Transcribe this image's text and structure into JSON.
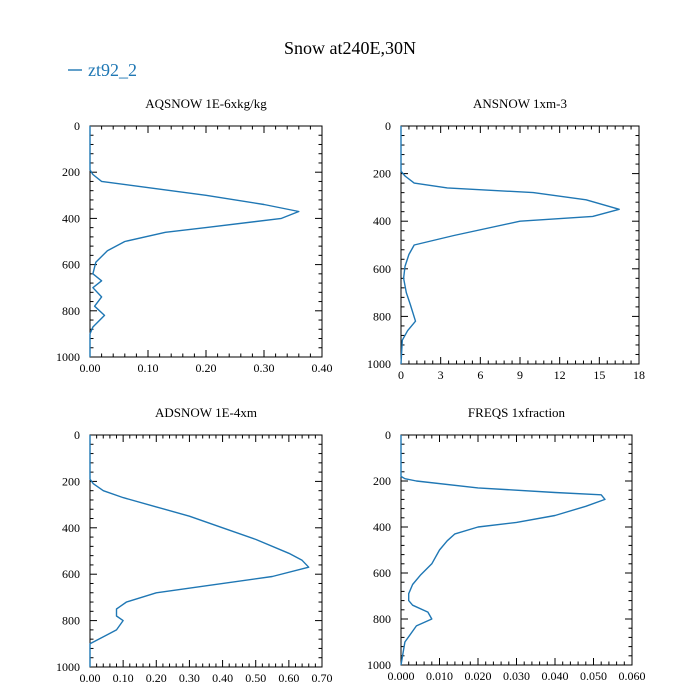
{
  "title": "Snow at240E,30N",
  "legend": {
    "label": "zt92_2",
    "color": "#1f77b4"
  },
  "colors": {
    "series": "#1f77b4",
    "axis": "#000000"
  },
  "chart_data": [
    {
      "type": "line",
      "title": "AQSNOW  1E-6xkg/kg",
      "xlabel": "",
      "ylabel": "",
      "xlim": [
        0,
        0.4
      ],
      "ylim": [
        1000,
        0
      ],
      "x_ticks": [
        0,
        0.1,
        0.2,
        0.3,
        0.4
      ],
      "x_tick_labels": [
        "0.00",
        "0.10",
        "0.20",
        "0.30",
        "0.40"
      ],
      "y_ticks": [
        0,
        200,
        400,
        600,
        800,
        1000
      ],
      "y_tick_labels": [
        "0",
        "200",
        "400",
        "600",
        "800",
        "1000"
      ],
      "series": [
        {
          "name": "zt92_2",
          "x": [
            0,
            0,
            0.005,
            0.02,
            0.08,
            0.2,
            0.3,
            0.36,
            0.33,
            0.2,
            0.13,
            0.06,
            0.03,
            0.01,
            0.005,
            0.02,
            0.005,
            0.02,
            0.008,
            0.025,
            0.005,
            0,
            0
          ],
          "y": [
            0,
            190,
            210,
            240,
            260,
            300,
            340,
            370,
            400,
            440,
            460,
            500,
            540,
            590,
            640,
            670,
            700,
            740,
            780,
            820,
            870,
            900,
            1000
          ]
        }
      ]
    },
    {
      "type": "line",
      "title": "ANSNOW  1xm-3",
      "xlabel": "",
      "ylabel": "",
      "xlim": [
        0,
        18
      ],
      "ylim": [
        1000,
        0
      ],
      "x_ticks": [
        0,
        3,
        6,
        9,
        12,
        15,
        18
      ],
      "x_tick_labels": [
        "0",
        "3",
        "6",
        "9",
        "12",
        "15",
        "18"
      ],
      "y_ticks": [
        0,
        200,
        400,
        600,
        800,
        1000
      ],
      "y_tick_labels": [
        "0",
        "200",
        "400",
        "600",
        "800",
        "1000"
      ],
      "series": [
        {
          "name": "zt92_2",
          "x": [
            0,
            0,
            0.3,
            1,
            3.5,
            10,
            14,
            16.5,
            14.5,
            9,
            4,
            1,
            0.6,
            0.3,
            0.2,
            0.4,
            0.7,
            1.1,
            0.5,
            0.1,
            0
          ],
          "y": [
            0,
            190,
            210,
            240,
            260,
            280,
            310,
            350,
            380,
            400,
            460,
            500,
            540,
            590,
            640,
            700,
            750,
            820,
            860,
            900,
            1000
          ]
        }
      ]
    },
    {
      "type": "line",
      "title": "ADSNOW  1E-4xm",
      "xlabel": "",
      "ylabel": "",
      "xlim": [
        0,
        0.7
      ],
      "ylim": [
        1000,
        0
      ],
      "x_ticks": [
        0,
        0.1,
        0.2,
        0.3,
        0.4,
        0.5,
        0.6,
        0.7
      ],
      "x_tick_labels": [
        "0.00",
        "0.10",
        "0.20",
        "0.30",
        "0.40",
        "0.50",
        "0.60",
        "0.70"
      ],
      "y_ticks": [
        0,
        200,
        400,
        600,
        800,
        1000
      ],
      "y_tick_labels": [
        "0",
        "200",
        "400",
        "600",
        "800",
        "1000"
      ],
      "series": [
        {
          "name": "zt92_2",
          "x": [
            0,
            0,
            0.01,
            0.04,
            0.1,
            0.2,
            0.3,
            0.4,
            0.5,
            0.6,
            0.64,
            0.66,
            0.55,
            0.35,
            0.2,
            0.11,
            0.09,
            0.08,
            0.08,
            0.1,
            0.08,
            0,
            0
          ],
          "y": [
            0,
            190,
            210,
            240,
            270,
            310,
            350,
            400,
            450,
            510,
            540,
            570,
            610,
            650,
            680,
            720,
            740,
            750,
            780,
            800,
            840,
            900,
            1000
          ]
        }
      ]
    },
    {
      "type": "line",
      "title": "FREQS  1xfraction",
      "xlabel": "",
      "ylabel": "",
      "xlim": [
        0,
        0.06
      ],
      "ylim": [
        1000,
        0
      ],
      "x_ticks": [
        0,
        0.01,
        0.02,
        0.03,
        0.04,
        0.05,
        0.06
      ],
      "x_tick_labels": [
        "0.000",
        "0.010",
        "0.020",
        "0.030",
        "0.040",
        "0.050",
        "0.060"
      ],
      "y_ticks": [
        0,
        200,
        400,
        600,
        800,
        1000
      ],
      "y_tick_labels": [
        "0",
        "200",
        "400",
        "600",
        "800",
        "1000"
      ],
      "series": [
        {
          "name": "zt92_2",
          "x": [
            0,
            0,
            0.001,
            0.004,
            0.02,
            0.04,
            0.052,
            0.053,
            0.048,
            0.04,
            0.03,
            0.02,
            0.014,
            0.012,
            0.01,
            0.008,
            0.005,
            0.003,
            0.002,
            0.002,
            0.003,
            0.007,
            0.008,
            0.004,
            0.001,
            0
          ],
          "y": [
            0,
            180,
            190,
            200,
            230,
            250,
            260,
            280,
            310,
            350,
            380,
            400,
            430,
            460,
            500,
            560,
            610,
            650,
            690,
            720,
            740,
            770,
            800,
            830,
            900,
            1000
          ]
        }
      ]
    }
  ]
}
